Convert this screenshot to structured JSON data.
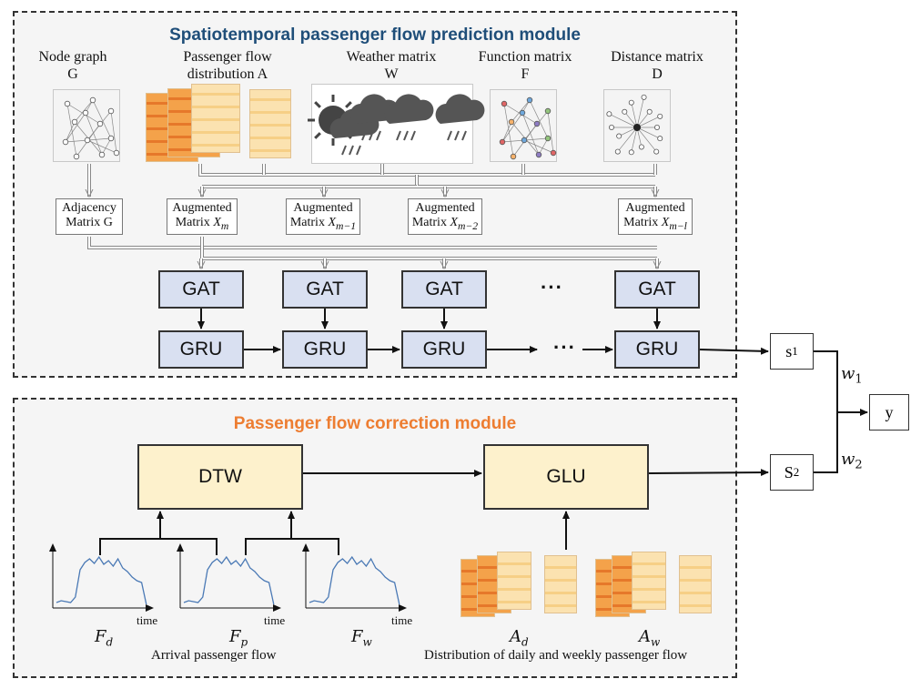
{
  "modules": {
    "prediction": {
      "title": "Spatiotemporal passenger flow prediction module",
      "title_color": "#1f4e79"
    },
    "correction": {
      "title": "Passenger flow correction module",
      "title_color": "#ed7d31"
    }
  },
  "inputs": {
    "node_graph": {
      "line1": "Node graph",
      "line2": "G"
    },
    "passenger_flow": {
      "line1": "Passenger flow",
      "line2": "distribution A"
    },
    "weather": {
      "line1": "Weather matrix",
      "line2": "W"
    },
    "function": {
      "line1": "Function matrix",
      "line2": "F"
    },
    "distance": {
      "line1": "Distance matrix",
      "line2": "D"
    }
  },
  "matrices": {
    "adjacency": {
      "line1": "Adjacency",
      "line2": "Matrix G"
    },
    "augmented": [
      {
        "line1": "Augmented",
        "line2": "Matrix",
        "sub": "m"
      },
      {
        "line1": "Augmented",
        "line2": "Matrix",
        "sub": "m−1"
      },
      {
        "line1": "Augmented",
        "line2": "Matrix",
        "sub": "m−2"
      },
      {
        "line1": "Augmented",
        "line2": "Matrix",
        "sub": "m−l"
      }
    ],
    "var": "X"
  },
  "blocks": {
    "gat": "GAT",
    "gru": "GRU",
    "dtw": "DTW",
    "glu": "GLU",
    "ellipsis": "···"
  },
  "outputs": {
    "s1": "s",
    "s1_sub": "1",
    "s2": "S",
    "s2_sub": "2",
    "w1": "w",
    "w1_sub": "1",
    "w2": "w",
    "w2_sub": "2",
    "y": "y"
  },
  "series": {
    "time_label": "time",
    "fd": {
      "sym": "F",
      "sub": "d"
    },
    "fp": {
      "sym": "F",
      "sub": "p"
    },
    "fw": {
      "sym": "F",
      "sub": "w"
    },
    "caption": "Arrival passenger flow"
  },
  "distribution": {
    "ad": {
      "sym": "A",
      "sub": "d"
    },
    "aw": {
      "sym": "A",
      "sub": "w"
    },
    "caption": "Distribution of daily and weekly passenger flow"
  },
  "colors": {
    "block_blue": "#d9e0f1",
    "block_yellow": "#fdf1cc",
    "curve": "#4a79b5"
  }
}
